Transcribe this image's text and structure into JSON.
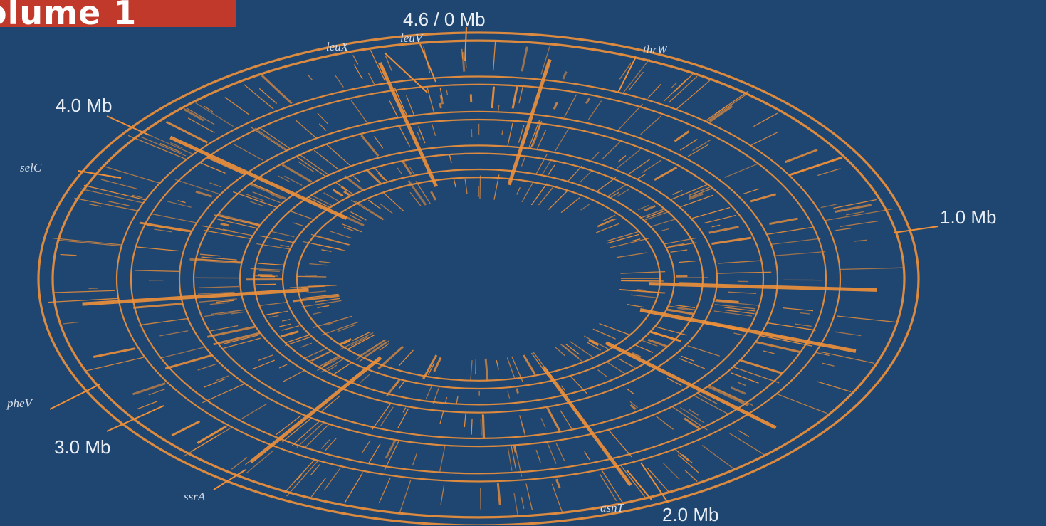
{
  "banner": {
    "text": "olume 1",
    "color": "#c0392b"
  },
  "colors": {
    "background": "#1f4670",
    "track": "#f0913a",
    "text": "#e9eef5"
  },
  "position_labels": {
    "origin": "4.6 / 0 Mb",
    "mb1": "1.0 Mb",
    "mb2": "2.0 Mb",
    "mb3": "3.0 Mb",
    "mb4": "4.0 Mb"
  },
  "gene_labels": {
    "leuX": "leuX",
    "leuV": "leuV",
    "thrW": "thrW",
    "selC": "selC",
    "pheV": "pheV",
    "ssrA": "ssrA",
    "asnT": "asnT"
  }
}
